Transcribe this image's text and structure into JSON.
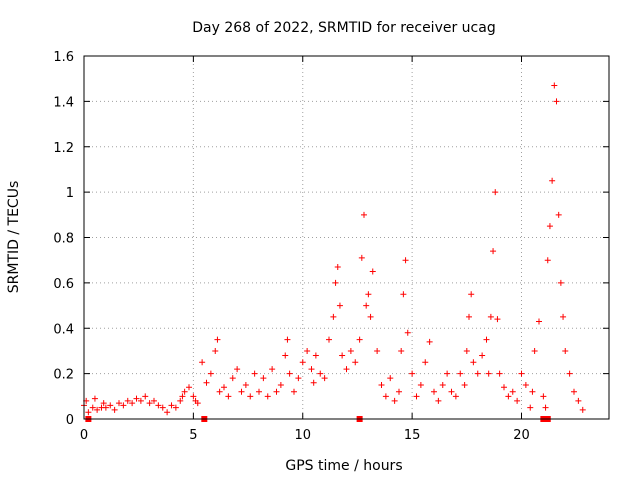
{
  "chart_data": {
    "type": "scatter",
    "title": "Day 268 of 2022, SRMTID for receiver ucag",
    "xlabel": "GPS time / hours",
    "ylabel": "SRMTID / TECUs",
    "xlim": [
      0,
      24
    ],
    "ylim": [
      0,
      1.6
    ],
    "xticks": [
      0,
      5,
      10,
      15,
      20
    ],
    "xtick_labels": [
      "0",
      "5",
      "10",
      "15",
      "20"
    ],
    "yticks": [
      0,
      0.2,
      0.4,
      0.6,
      0.8,
      1.0,
      1.2,
      1.4,
      1.6
    ],
    "ytick_labels": [
      "0",
      "0.2",
      "0.4",
      "0.6",
      "0.8",
      "1",
      "1.2",
      "1.4",
      "1.6"
    ],
    "grid": true,
    "marker": "+",
    "color": "#ff0000",
    "series": [
      {
        "name": "SRMTID",
        "x": [
          0.0,
          0.1,
          0.2,
          0.4,
          0.5,
          0.6,
          0.8,
          0.9,
          1.0,
          1.2,
          1.4,
          1.6,
          1.8,
          2.0,
          2.2,
          2.4,
          2.6,
          2.8,
          3.0,
          3.2,
          3.4,
          3.6,
          3.8,
          4.0,
          4.2,
          4.4,
          4.5,
          4.6,
          4.8,
          5.0,
          5.1,
          5.2,
          5.4,
          5.6,
          5.8,
          6.0,
          6.1,
          6.2,
          6.4,
          6.6,
          6.8,
          7.0,
          7.2,
          7.4,
          7.6,
          7.8,
          8.0,
          8.2,
          8.4,
          8.6,
          8.8,
          9.0,
          9.2,
          9.3,
          9.4,
          9.6,
          9.8,
          10.0,
          10.2,
          10.4,
          10.5,
          10.6,
          10.8,
          11.0,
          11.2,
          11.4,
          11.5,
          11.6,
          11.7,
          11.8,
          12.0,
          12.2,
          12.4,
          12.6,
          12.7,
          12.8,
          12.9,
          13.0,
          13.1,
          13.2,
          13.4,
          13.6,
          13.8,
          14.0,
          14.2,
          14.4,
          14.5,
          14.6,
          14.7,
          14.8,
          15.0,
          15.2,
          15.4,
          15.6,
          15.8,
          16.0,
          16.2,
          16.4,
          16.6,
          16.8,
          17.0,
          17.2,
          17.4,
          17.5,
          17.6,
          17.7,
          17.8,
          18.0,
          18.2,
          18.4,
          18.5,
          18.6,
          18.7,
          18.8,
          18.9,
          19.0,
          19.2,
          19.4,
          19.6,
          19.8,
          20.0,
          20.2,
          20.4,
          20.5,
          20.6,
          20.8,
          21.0,
          21.1,
          21.2,
          21.3,
          21.4,
          21.5,
          21.6,
          21.7,
          21.8,
          21.9,
          22.0,
          22.2,
          22.4,
          22.6,
          22.8
        ],
        "y": [
          0.06,
          0.08,
          0.03,
          0.05,
          0.09,
          0.04,
          0.05,
          0.07,
          0.05,
          0.06,
          0.04,
          0.07,
          0.06,
          0.08,
          0.07,
          0.09,
          0.08,
          0.1,
          0.07,
          0.08,
          0.06,
          0.05,
          0.03,
          0.06,
          0.05,
          0.08,
          0.1,
          0.12,
          0.14,
          0.1,
          0.08,
          0.07,
          0.25,
          0.16,
          0.2,
          0.3,
          0.35,
          0.12,
          0.14,
          0.1,
          0.18,
          0.22,
          0.12,
          0.15,
          0.1,
          0.2,
          0.12,
          0.18,
          0.1,
          0.22,
          0.12,
          0.15,
          0.28,
          0.35,
          0.2,
          0.12,
          0.18,
          0.25,
          0.3,
          0.22,
          0.16,
          0.28,
          0.2,
          0.18,
          0.35,
          0.45,
          0.6,
          0.67,
          0.5,
          0.28,
          0.22,
          0.3,
          0.25,
          0.35,
          0.71,
          0.9,
          0.5,
          0.55,
          0.45,
          0.65,
          0.3,
          0.15,
          0.1,
          0.18,
          0.08,
          0.12,
          0.3,
          0.55,
          0.7,
          0.38,
          0.2,
          0.1,
          0.15,
          0.25,
          0.34,
          0.12,
          0.08,
          0.15,
          0.2,
          0.12,
          0.1,
          0.2,
          0.15,
          0.3,
          0.45,
          0.55,
          0.25,
          0.2,
          0.28,
          0.35,
          0.2,
          0.45,
          0.74,
          1.0,
          0.44,
          0.2,
          0.14,
          0.1,
          0.12,
          0.08,
          0.2,
          0.15,
          0.05,
          0.12,
          0.3,
          0.43,
          0.1,
          0.05,
          0.7,
          0.85,
          1.05,
          1.47,
          1.4,
          0.9,
          0.6,
          0.45,
          0.3,
          0.2,
          0.12,
          0.08,
          0.04
        ],
        "zero_markers_x": [
          0.2,
          5.5,
          12.6,
          21.0,
          21.2
        ]
      }
    ]
  }
}
